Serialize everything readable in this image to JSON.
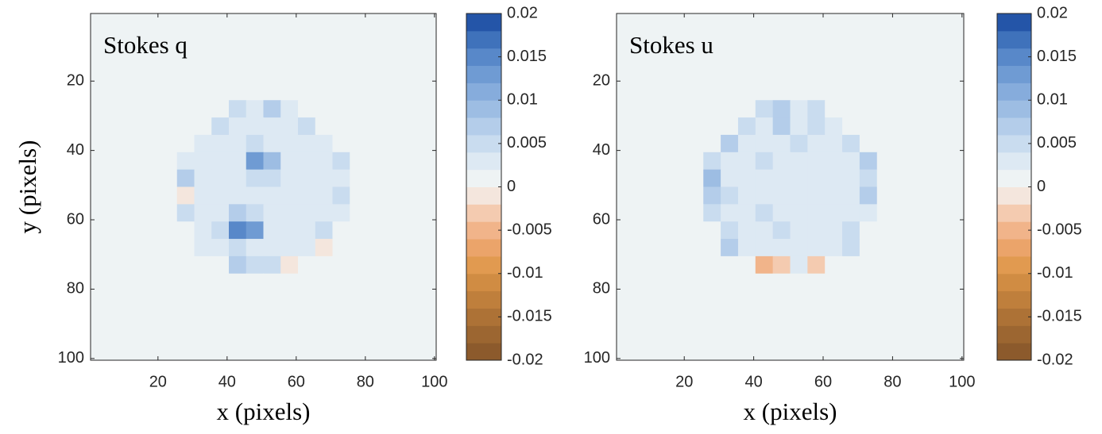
{
  "chart_data": [
    {
      "type": "heatmap",
      "title": "Stokes q",
      "xlabel": "x (pixels)",
      "ylabel": "y (pixels)",
      "xlim": [
        0.5,
        100.5
      ],
      "ylim": [
        0.5,
        100.5
      ],
      "y_reversed": true,
      "xticks": [
        20,
        40,
        60,
        80,
        100
      ],
      "yticks": [
        20,
        40,
        60,
        80,
        100
      ],
      "z": [
        [
          0,
          0,
          0,
          0,
          0,
          0,
          0,
          0,
          0,
          0,
          0,
          0,
          0,
          0,
          0,
          0,
          0,
          0,
          0,
          0
        ],
        [
          0,
          0,
          0,
          0,
          0,
          0,
          0,
          0,
          0,
          0,
          0,
          0,
          0,
          0,
          0,
          0,
          0,
          0,
          0,
          0
        ],
        [
          0,
          0,
          0,
          0,
          0,
          0,
          0,
          0,
          0,
          0,
          0,
          0,
          0,
          0,
          0,
          0,
          0,
          0,
          0,
          0
        ],
        [
          0,
          0,
          0,
          0,
          0,
          0,
          0,
          0,
          0,
          0,
          0,
          0,
          0,
          0,
          0,
          0,
          0,
          0,
          0,
          0
        ],
        [
          0,
          0,
          0,
          0,
          0,
          0,
          0,
          0,
          0,
          0,
          0,
          0,
          0,
          0,
          0,
          0,
          0,
          0,
          0,
          0
        ],
        [
          0,
          0,
          0,
          0,
          0,
          0,
          0,
          0,
          0.004,
          0.002,
          0.006,
          0.002,
          0,
          0,
          0,
          0,
          0,
          0,
          0,
          0
        ],
        [
          0,
          0,
          0,
          0,
          0,
          0,
          0,
          0.004,
          0.002,
          0.002,
          0.002,
          0.002,
          0.004,
          0,
          0,
          0,
          0,
          0,
          0,
          0
        ],
        [
          0,
          0,
          0,
          0,
          0,
          0,
          0.002,
          0.002,
          0.002,
          0.004,
          0.002,
          0.002,
          0.002,
          0.002,
          0,
          0,
          0,
          0,
          0,
          0
        ],
        [
          0,
          0,
          0,
          0,
          0,
          0.002,
          0.002,
          0.002,
          0.002,
          0.012,
          0.008,
          0.002,
          0.002,
          0.002,
          0.004,
          0,
          0,
          0,
          0,
          0
        ],
        [
          0,
          0,
          0,
          0,
          0,
          0.006,
          0.002,
          0.002,
          0.002,
          0.004,
          0.004,
          0.002,
          0.002,
          0.002,
          0.002,
          0,
          0,
          0,
          0,
          0
        ],
        [
          0,
          0,
          0,
          0,
          0,
          -0.002,
          0.002,
          0.002,
          0.002,
          0.002,
          0.002,
          0.002,
          0.002,
          0.002,
          0.004,
          0,
          0,
          0,
          0,
          0
        ],
        [
          0,
          0,
          0,
          0,
          0,
          0.004,
          0.002,
          0.002,
          0.006,
          0.004,
          0.002,
          0.002,
          0.002,
          0.002,
          0.002,
          0,
          0,
          0,
          0,
          0
        ],
        [
          0,
          0,
          0,
          0,
          0,
          0,
          0.002,
          0.004,
          0.014,
          0.012,
          0.002,
          0.002,
          0.002,
          0.004,
          0,
          0,
          0,
          0,
          0,
          0
        ],
        [
          0,
          0,
          0,
          0,
          0,
          0,
          0.002,
          0.002,
          0.004,
          0.002,
          0.002,
          0.002,
          0.002,
          -0.002,
          0,
          0,
          0,
          0,
          0,
          0
        ],
        [
          0,
          0,
          0,
          0,
          0,
          0,
          0,
          0,
          0.006,
          0.004,
          0.004,
          -0.002,
          0,
          0,
          0,
          0,
          0,
          0,
          0,
          0
        ],
        [
          0,
          0,
          0,
          0,
          0,
          0,
          0,
          0,
          0,
          0,
          0,
          0,
          0,
          0,
          0,
          0,
          0,
          0,
          0,
          0
        ],
        [
          0,
          0,
          0,
          0,
          0,
          0,
          0,
          0,
          0,
          0,
          0,
          0,
          0,
          0,
          0,
          0,
          0,
          0,
          0,
          0
        ],
        [
          0,
          0,
          0,
          0,
          0,
          0,
          0,
          0,
          0,
          0,
          0,
          0,
          0,
          0,
          0,
          0,
          0,
          0,
          0,
          0
        ],
        [
          0,
          0,
          0,
          0,
          0,
          0,
          0,
          0,
          0,
          0,
          0,
          0,
          0,
          0,
          0,
          0,
          0,
          0,
          0,
          0
        ],
        [
          0,
          0,
          0,
          0,
          0,
          0,
          0,
          0,
          0,
          0,
          0,
          0,
          0,
          0,
          0,
          0,
          0,
          0,
          0,
          0
        ]
      ],
      "colorbar": {
        "clim": [
          -0.02,
          0.02
        ],
        "ticks": [
          0.02,
          0.015,
          0.01,
          0.005,
          0,
          -0.005,
          -0.01,
          -0.015,
          -0.02
        ],
        "colors": [
          "#8c5a2c",
          "#9c6631",
          "#ad7236",
          "#bf7f3c",
          "#d08c43",
          "#e19a50",
          "#eba46a",
          "#f1b48a",
          "#f4cbb0",
          "#f4e6dd",
          "#eef3f4",
          "#dde9f3",
          "#c9dcef",
          "#b4cdea",
          "#9dbde3",
          "#86acdc",
          "#6f9bd3",
          "#5888c9",
          "#3f72bb",
          "#2455a8"
        ]
      }
    },
    {
      "type": "heatmap",
      "title": "Stokes u",
      "xlabel": "x (pixels)",
      "xlim": [
        0.5,
        100.5
      ],
      "ylim": [
        0.5,
        100.5
      ],
      "y_reversed": true,
      "xticks": [
        20,
        40,
        60,
        80,
        100
      ],
      "yticks": [
        20,
        40,
        60,
        80,
        100
      ],
      "z": [
        [
          0,
          0,
          0,
          0,
          0,
          0,
          0,
          0,
          0,
          0,
          0,
          0,
          0,
          0,
          0,
          0,
          0,
          0,
          0,
          0
        ],
        [
          0,
          0,
          0,
          0,
          0,
          0,
          0,
          0,
          0,
          0,
          0,
          0,
          0,
          0,
          0,
          0,
          0,
          0,
          0,
          0
        ],
        [
          0,
          0,
          0,
          0,
          0,
          0,
          0,
          0,
          0,
          0,
          0,
          0,
          0,
          0,
          0,
          0,
          0,
          0,
          0,
          0
        ],
        [
          0,
          0,
          0,
          0,
          0,
          0,
          0,
          0,
          0,
          0,
          0,
          0,
          0,
          0,
          0,
          0,
          0,
          0,
          0,
          0
        ],
        [
          0,
          0,
          0,
          0,
          0,
          0,
          0,
          0,
          0,
          0,
          0,
          0,
          0,
          0,
          0,
          0,
          0,
          0,
          0,
          0
        ],
        [
          0,
          0,
          0,
          0,
          0,
          0,
          0,
          0,
          0.004,
          0.006,
          0.002,
          0.004,
          0,
          0,
          0,
          0,
          0,
          0,
          0,
          0
        ],
        [
          0,
          0,
          0,
          0,
          0,
          0,
          0,
          0.004,
          0.002,
          0.006,
          0.002,
          0.004,
          0.002,
          0,
          0,
          0,
          0,
          0,
          0,
          0
        ],
        [
          0,
          0,
          0,
          0,
          0,
          0,
          0.006,
          0.002,
          0.002,
          0.002,
          0.004,
          0.002,
          0.002,
          0.004,
          0,
          0,
          0,
          0,
          0,
          0
        ],
        [
          0,
          0,
          0,
          0,
          0,
          0.004,
          0.002,
          0.002,
          0.004,
          0.002,
          0.002,
          0.002,
          0.002,
          0.002,
          0.006,
          0,
          0,
          0,
          0,
          0
        ],
        [
          0,
          0,
          0,
          0,
          0,
          0.008,
          0.002,
          0.002,
          0.002,
          0.002,
          0.002,
          0.002,
          0.002,
          0.002,
          0.004,
          0,
          0,
          0,
          0,
          0
        ],
        [
          0,
          0,
          0,
          0,
          0,
          0.006,
          0.004,
          0.002,
          0.002,
          0.002,
          0.002,
          0.002,
          0.002,
          0.002,
          0.006,
          0,
          0,
          0,
          0,
          0
        ],
        [
          0,
          0,
          0,
          0,
          0,
          0.004,
          0.002,
          0.002,
          0.004,
          0.002,
          0.002,
          0.002,
          0.002,
          0.002,
          0.002,
          0,
          0,
          0,
          0,
          0
        ],
        [
          0,
          0,
          0,
          0,
          0,
          0,
          0.004,
          0.002,
          0.002,
          0.004,
          0.002,
          0.002,
          0.002,
          0.004,
          0,
          0,
          0,
          0,
          0,
          0
        ],
        [
          0,
          0,
          0,
          0,
          0,
          0,
          0.006,
          0.002,
          0.002,
          0.002,
          0.002,
          0.002,
          0.002,
          0.004,
          0,
          0,
          0,
          0,
          0,
          0
        ],
        [
          0,
          0,
          0,
          0,
          0,
          0,
          0,
          0,
          -0.006,
          -0.004,
          0.002,
          -0.004,
          0,
          0,
          0,
          0,
          0,
          0,
          0,
          0
        ],
        [
          0,
          0,
          0,
          0,
          0,
          0,
          0,
          0,
          0,
          0,
          0,
          0,
          0,
          0,
          0,
          0,
          0,
          0,
          0,
          0
        ],
        [
          0,
          0,
          0,
          0,
          0,
          0,
          0,
          0,
          0,
          0,
          0,
          0,
          0,
          0,
          0,
          0,
          0,
          0,
          0,
          0
        ],
        [
          0,
          0,
          0,
          0,
          0,
          0,
          0,
          0,
          0,
          0,
          0,
          0,
          0,
          0,
          0,
          0,
          0,
          0,
          0,
          0
        ],
        [
          0,
          0,
          0,
          0,
          0,
          0,
          0,
          0,
          0,
          0,
          0,
          0,
          0,
          0,
          0,
          0,
          0,
          0,
          0,
          0
        ],
        [
          0,
          0,
          0,
          0,
          0,
          0,
          0,
          0,
          0,
          0,
          0,
          0,
          0,
          0,
          0,
          0,
          0,
          0,
          0,
          0
        ]
      ],
      "colorbar": {
        "clim": [
          -0.02,
          0.02
        ],
        "ticks": [
          0.02,
          0.015,
          0.01,
          0.005,
          0,
          -0.005,
          -0.01,
          -0.015,
          -0.02
        ],
        "colors": [
          "#8c5a2c",
          "#9c6631",
          "#ad7236",
          "#bf7f3c",
          "#d08c43",
          "#e19a50",
          "#eba46a",
          "#f1b48a",
          "#f4cbb0",
          "#f4e6dd",
          "#eef3f4",
          "#dde9f3",
          "#c9dcef",
          "#b4cdea",
          "#9dbde3",
          "#86acdc",
          "#6f9bd3",
          "#5888c9",
          "#3f72bb",
          "#2455a8"
        ]
      }
    }
  ]
}
